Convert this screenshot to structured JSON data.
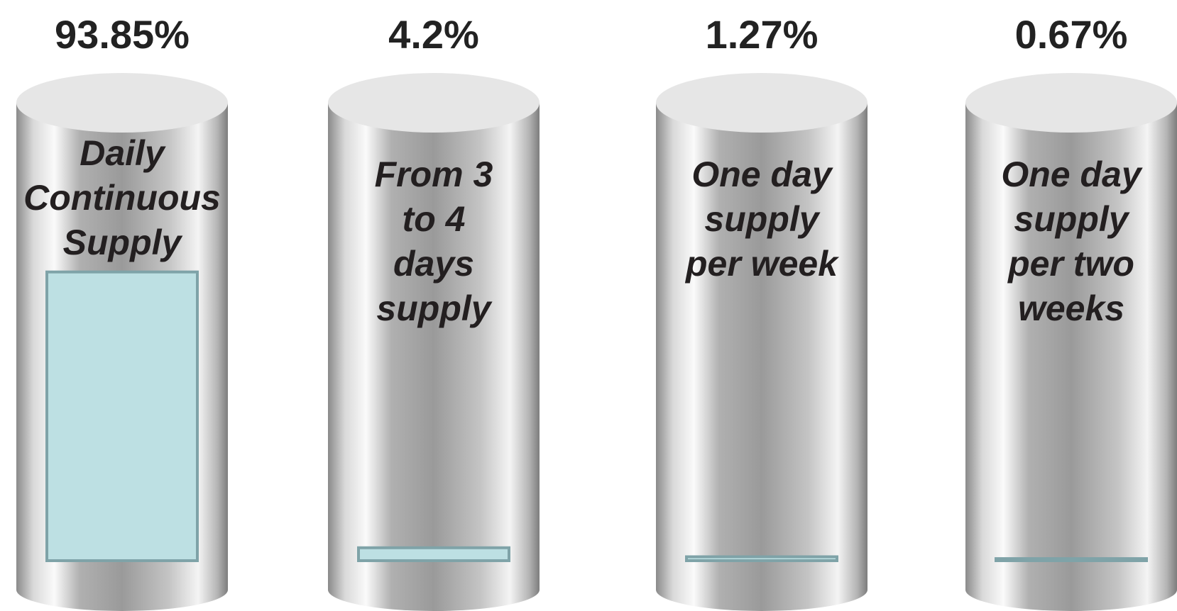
{
  "chart_data": {
    "type": "bar",
    "categories": [
      "Daily\nContinuous\nSupply",
      "From 3\nto 4\ndays\nsupply",
      "One day\nsupply\nper  week",
      "One day\nsupply\nper two\nweeks"
    ],
    "values": [
      93.85,
      4.2,
      1.27,
      0.67
    ],
    "value_labels": [
      "93.85%",
      "4.2%",
      "1.27%",
      "0.67%"
    ],
    "color": "#bde0e3",
    "ylim": [
      0,
      100
    ]
  }
}
